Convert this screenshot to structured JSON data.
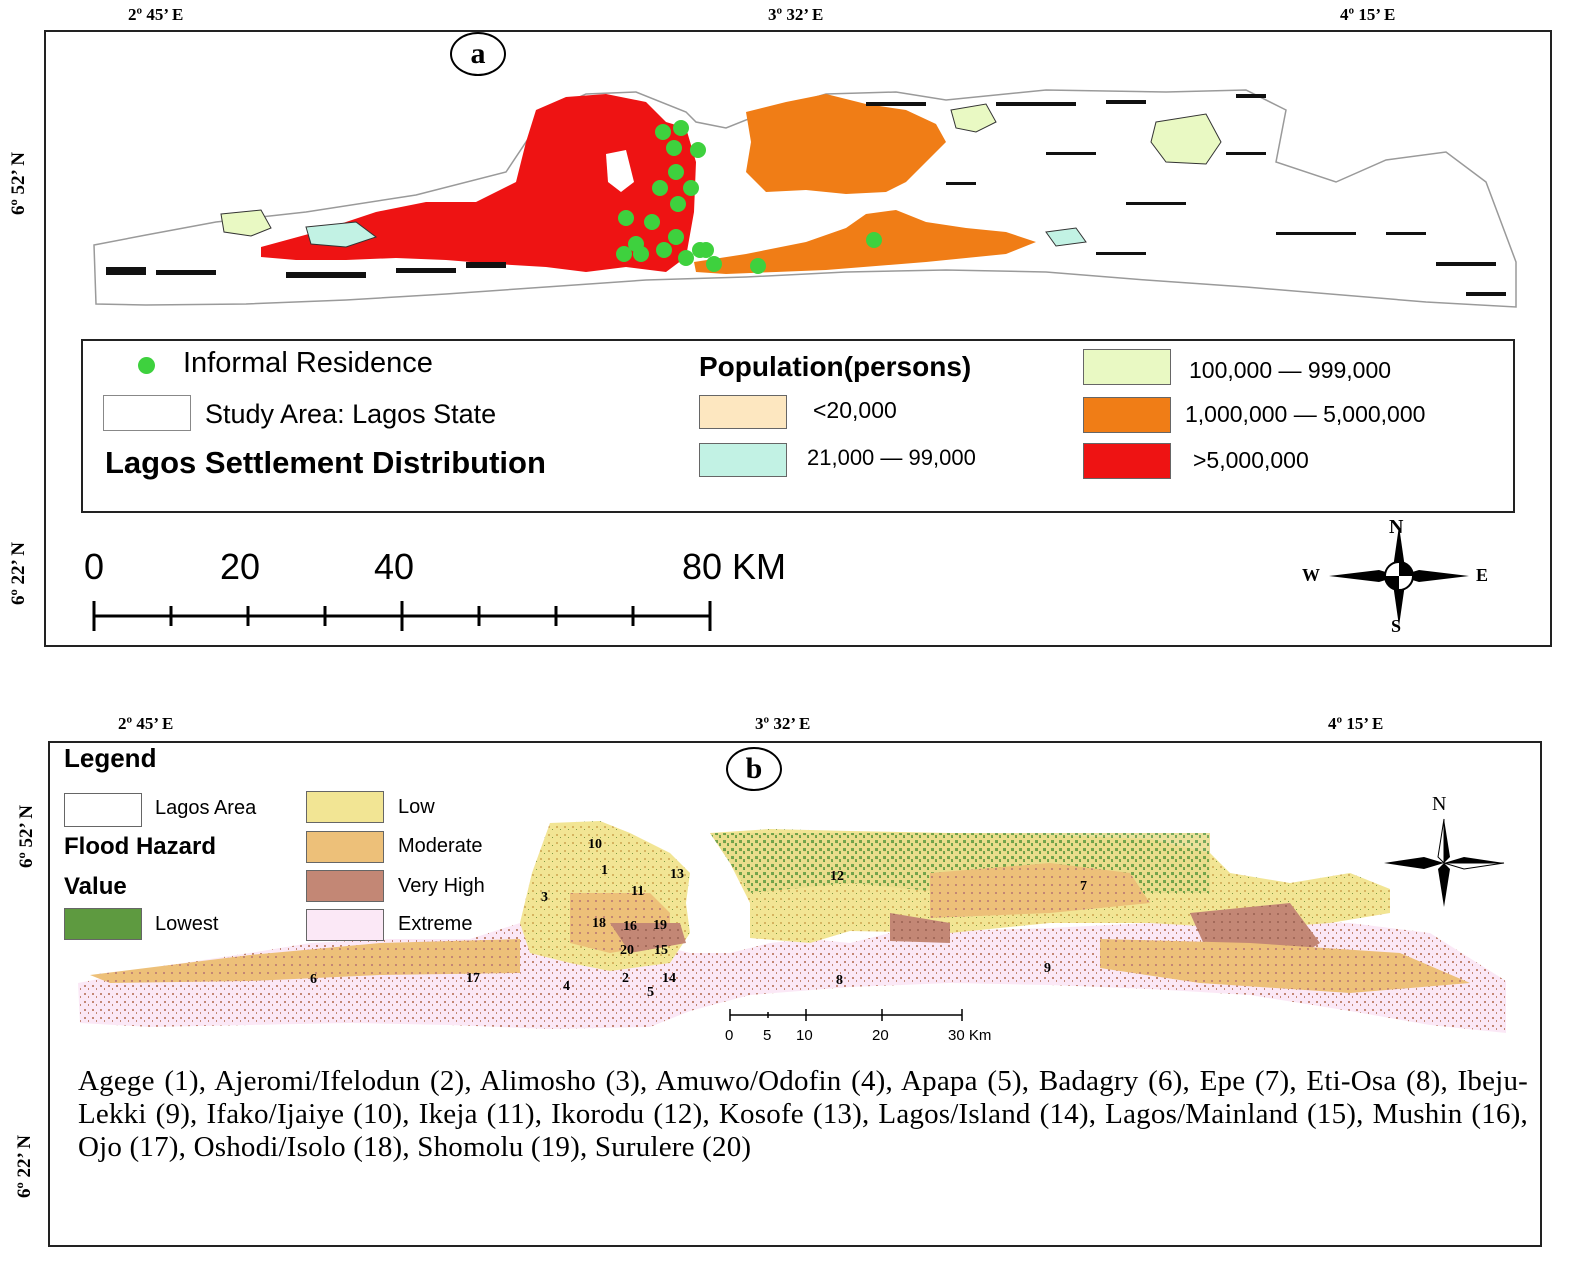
{
  "panel_a": {
    "label": "a",
    "coords_top": [
      "2º 45’ E",
      "3º 32’ E",
      "4º 15’ E"
    ],
    "coords_left": [
      "6º 52’ N",
      "6º 22’ N"
    ],
    "legend": {
      "informal_residence": "Informal Residence",
      "study_area": "Study Area: Lagos State",
      "title": "Lagos Settlement Distribution",
      "population_title": "Population(persons)",
      "classes": [
        {
          "label": "<20,000",
          "color": "#fde7c0"
        },
        {
          "label": "21,000 — 99,000",
          "color": "#c2f2e4"
        },
        {
          "label": "100,000 — 999,000",
          "color": "#e9f9c3"
        },
        {
          "label": "1,000,000 — 5,000,000",
          "color": "#f07d16"
        },
        {
          "label": ">5,000,000",
          "color": "#ee1313"
        }
      ],
      "informal_color": "#3ed13e"
    },
    "scale_labels": [
      "0",
      "20",
      "40",
      "80 KM"
    ],
    "compass": {
      "n": "N",
      "s": "S",
      "e": "E",
      "w": "W"
    }
  },
  "panel_b": {
    "label": "b",
    "coords_top": [
      "2º 45’ E",
      "3º 32’ E",
      "4º 15’ E"
    ],
    "coords_left": [
      "6º 52’ N",
      "6º 22’ N"
    ],
    "legend": {
      "title": "Legend",
      "lagos_area": "Lagos Area",
      "flood_hazard": "Flood Hazard",
      "value": "Value",
      "classes": [
        {
          "label": "Lowest",
          "color": "#5e9a40"
        },
        {
          "label": "Low",
          "color": "#f2e594"
        },
        {
          "label": "Moderate",
          "color": "#edc079"
        },
        {
          "label": "Very High",
          "color": "#c38775"
        },
        {
          "label": "Extreme",
          "color": "#fbe8f6"
        }
      ]
    },
    "compass_n": "N",
    "scale_labels": [
      "0",
      "5",
      "10",
      "20",
      "30 Km"
    ],
    "district_numbers": [
      "10",
      "1",
      "13",
      "11",
      "3",
      "12",
      "7",
      "18",
      "16",
      "19",
      "20",
      "15",
      "6",
      "17",
      "4",
      "2",
      "5",
      "14",
      "8",
      "9"
    ],
    "districts_text": "Agege (1), Ajeromi/Ifelodun (2), Alimosho (3), Amuwo/Odofin (4), Apapa (5), Badagry (6), Epe (7), Eti-Osa (8), Ibeju-Lekki (9), Ifako/Ijaiye (10), Ikeja (11), Ikorodu (12), Kosofe (13), Lagos/Island (14), Lagos/Mainland (15), Mushin (16), Ojo (17), Oshodi/Isolo (18), Shomolu (19), Surulere (20)"
  }
}
